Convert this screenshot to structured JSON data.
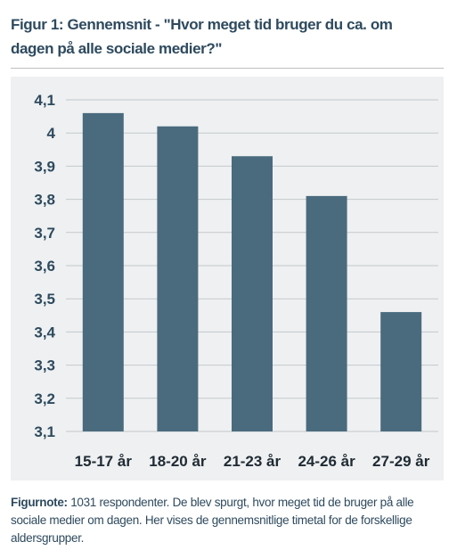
{
  "title_prefix": "Figur 1: Gennemsnit - ",
  "title_text": "\"Hvor meget tid bruger du ca. om dagen på alle sociale medier?\"",
  "note_prefix": "Figurnote: ",
  "note_text": "1031 respondenter. De blev spurgt, hvor meget tid de bruger på alle sociale medier om dagen. Her vises de gennemsnitlige timetal for de forskellige aldersgrupper.",
  "chart_data": {
    "type": "bar",
    "categories": [
      "15-17 år",
      "18-20 år",
      "21-23 år",
      "24-26 år",
      "27-29 år"
    ],
    "values": [
      4.06,
      4.02,
      3.93,
      3.81,
      3.46
    ],
    "ylim": [
      3.1,
      4.1
    ],
    "yticks": [
      "3,1",
      "3,2",
      "3,3",
      "3,4",
      "3,5",
      "3,6",
      "3,7",
      "3,8",
      "3,9",
      "4",
      "4,1"
    ],
    "ytick_values": [
      3.1,
      3.2,
      3.3,
      3.4,
      3.5,
      3.6,
      3.7,
      3.8,
      3.9,
      4.0,
      4.1
    ],
    "bar_color": "#4a6b7e",
    "grid": true,
    "grid_color": "#c4c9cc"
  }
}
